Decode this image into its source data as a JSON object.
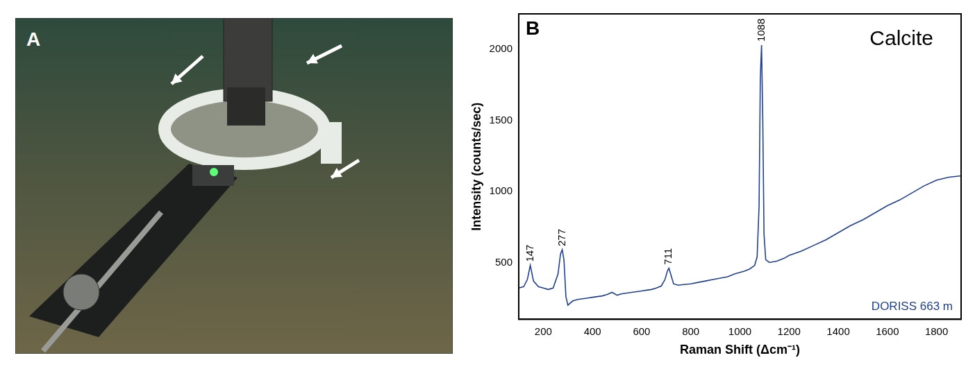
{
  "figure": {
    "panel_a": {
      "label": "A"
    }
  },
  "chart_data": {
    "panel_label": "B",
    "type": "line",
    "title": "Calcite",
    "annotation": "DORISS 663 m",
    "x_label": "Raman Shift (Δcm⁻¹)",
    "y_label": "Intensity (counts/sec)",
    "color": "#1f3f95",
    "x": [
      100,
      120,
      135,
      147,
      160,
      180,
      200,
      220,
      240,
      260,
      270,
      277,
      284,
      292,
      300,
      320,
      340,
      360,
      380,
      400,
      420,
      440,
      460,
      480,
      500,
      520,
      540,
      560,
      580,
      600,
      620,
      640,
      660,
      680,
      695,
      705,
      711,
      718,
      730,
      750,
      770,
      800,
      830,
      860,
      890,
      920,
      950,
      980,
      1000,
      1020,
      1040,
      1060,
      1070,
      1078,
      1083,
      1088,
      1093,
      1098,
      1105,
      1120,
      1150,
      1180,
      1200,
      1250,
      1300,
      1350,
      1400,
      1450,
      1500,
      1550,
      1600,
      1650,
      1700,
      1750,
      1800,
      1850,
      1900
    ],
    "values": [
      320,
      330,
      380,
      480,
      370,
      330,
      320,
      310,
      320,
      420,
      560,
      590,
      520,
      260,
      200,
      230,
      240,
      245,
      250,
      255,
      260,
      265,
      275,
      290,
      270,
      280,
      285,
      290,
      295,
      300,
      305,
      310,
      320,
      335,
      380,
      440,
      460,
      420,
      350,
      340,
      345,
      350,
      360,
      370,
      380,
      390,
      400,
      420,
      430,
      440,
      455,
      480,
      540,
      900,
      1800,
      2030,
      1500,
      700,
      520,
      500,
      510,
      530,
      550,
      580,
      620,
      660,
      710,
      760,
      800,
      850,
      900,
      940,
      990,
      1040,
      1080,
      1100,
      1110
    ],
    "peaks": [
      147,
      277,
      711,
      1088
    ],
    "xlim": [
      100,
      1900
    ],
    "xticks": [
      200,
      400,
      600,
      800,
      1000,
      1200,
      1400,
      1600,
      1800
    ],
    "ylim": [
      100,
      2250
    ],
    "yticks": [
      500,
      1000,
      1500,
      2000
    ],
    "grid": false
  }
}
